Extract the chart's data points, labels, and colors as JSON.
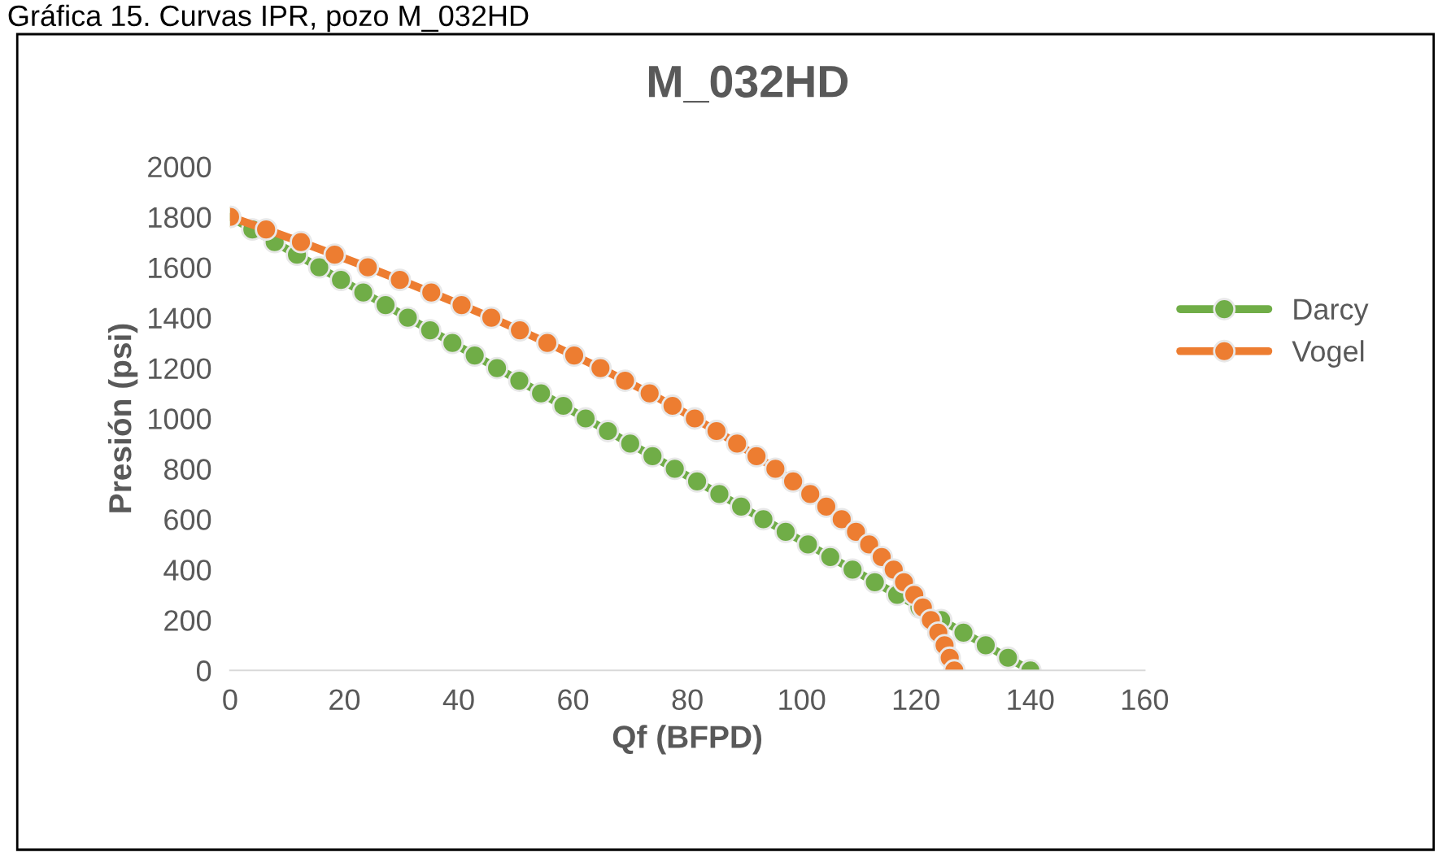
{
  "chart_data": {
    "type": "line",
    "title": "M_032HD",
    "xlabel": "Qf (BFPD)",
    "ylabel": "Presión (psi)",
    "annotations": [
      "Gráfica 15. Curvas IPR, pozo M_032HD"
    ],
    "xlim": [
      0,
      160
    ],
    "xticks": [
      0,
      20,
      40,
      60,
      80,
      100,
      120,
      140,
      160
    ],
    "ylim": [
      0,
      2000
    ],
    "yticks": [
      0,
      200,
      400,
      600,
      800,
      1000,
      1200,
      1400,
      1600,
      1800,
      2000
    ],
    "grid": false,
    "legend": "right",
    "marker": "circle",
    "line_style": "solid",
    "series": [
      {
        "name": "Darcy",
        "color": "#70ad47",
        "x": [
          0,
          3.9,
          7.8,
          11.7,
          15.6,
          19.4,
          23.3,
          27.2,
          31.1,
          35.0,
          38.9,
          42.8,
          46.7,
          50.6,
          54.4,
          58.3,
          62.2,
          66.1,
          70.0,
          73.9,
          77.8,
          81.7,
          85.6,
          89.4,
          93.3,
          97.2,
          101.1,
          105.0,
          108.9,
          112.8,
          116.7,
          120.6,
          124.4,
          128.3,
          132.2,
          136.1,
          140.0
        ],
        "values": [
          1800,
          1750,
          1700,
          1650,
          1600,
          1550,
          1500,
          1450,
          1400,
          1350,
          1300,
          1250,
          1200,
          1150,
          1100,
          1050,
          1000,
          950,
          900,
          850,
          800,
          750,
          700,
          650,
          600,
          550,
          500,
          450,
          400,
          350,
          300,
          250,
          200,
          150,
          100,
          50,
          0
        ]
      },
      {
        "name": "Vogel",
        "color": "#ed7d31",
        "x": [
          0,
          6.3,
          12.4,
          18.3,
          24.1,
          29.7,
          35.2,
          40.5,
          45.7,
          50.7,
          55.5,
          60.2,
          64.8,
          69.1,
          73.4,
          77.4,
          81.3,
          85.1,
          88.7,
          92.1,
          95.4,
          98.5,
          101.5,
          104.3,
          107.0,
          109.5,
          111.8,
          114.0,
          116.1,
          117.9,
          119.7,
          121.2,
          122.6,
          123.9,
          125.0,
          125.9,
          126.7
        ],
        "values": [
          1800,
          1750,
          1700,
          1650,
          1600,
          1550,
          1500,
          1450,
          1400,
          1350,
          1300,
          1250,
          1200,
          1150,
          1100,
          1050,
          1000,
          950,
          900,
          850,
          800,
          750,
          700,
          650,
          600,
          550,
          500,
          450,
          400,
          350,
          300,
          250,
          200,
          150,
          100,
          50,
          0
        ]
      }
    ]
  }
}
